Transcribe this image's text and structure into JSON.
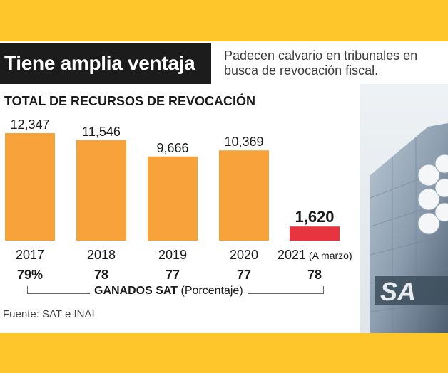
{
  "header": {
    "title": "Tiene amplia ventaja",
    "subtitle": "Padecen calvario en tribunales en busca de revocación fiscal."
  },
  "chart_data": {
    "type": "bar",
    "title": "TOTAL DE RECURSOS DE REVOCACIÓN",
    "categories": [
      "2017",
      "2018",
      "2019",
      "2020",
      "2021"
    ],
    "category_notes": [
      "",
      "",
      "",
      "",
      "(A marzo)"
    ],
    "values": [
      12347,
      11546,
      9666,
      10369,
      1620
    ],
    "value_labels": [
      "12,347",
      "11,546",
      "9,666",
      "10,369",
      "1,620"
    ],
    "bar_colors": [
      "#f7a23a",
      "#f7a23a",
      "#f7a23a",
      "#f7a23a",
      "#e8343f"
    ],
    "ylim": [
      0,
      13000
    ],
    "grid": false,
    "secondary": {
      "label": "GANADOS SAT",
      "unit": "(Porcentaje)",
      "values": [
        "79%",
        "78",
        "77",
        "77",
        "78"
      ]
    }
  },
  "footer": {
    "source": "Fuente: SAT e INAI"
  },
  "photo": {
    "sign_text": "SA"
  },
  "colors": {
    "background": "#ffc62c",
    "bar": "#f7a23a",
    "highlight": "#e8343f",
    "title_bar": "#1c1c1c"
  }
}
